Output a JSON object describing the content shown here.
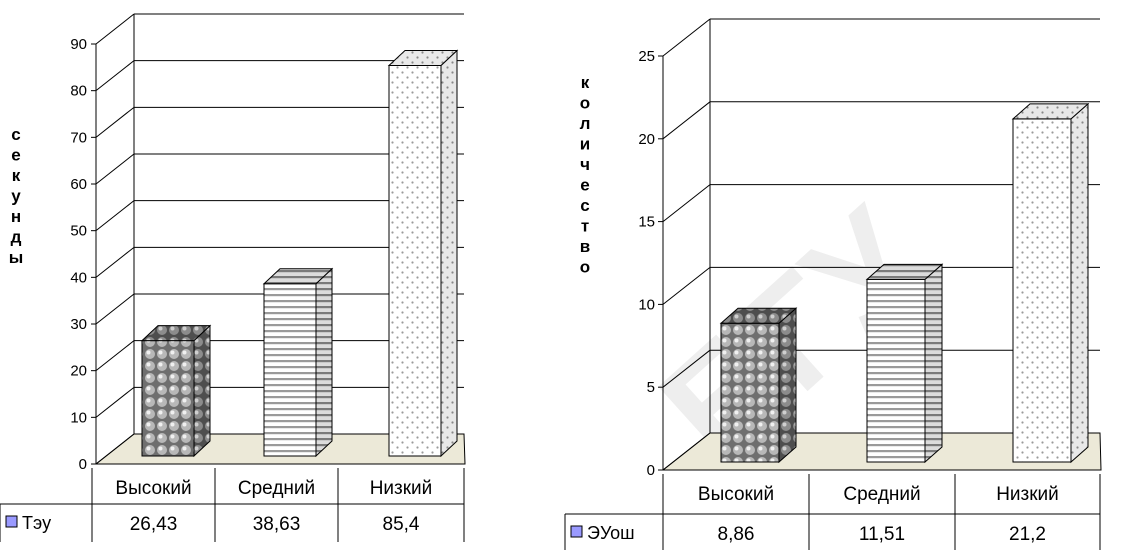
{
  "chart_data": [
    {
      "type": "bar",
      "categories": [
        "Высокий",
        "Средний",
        "Низкий"
      ],
      "series": [
        {
          "name": "Тэу",
          "values": [
            26.43,
            38.63,
            85.4
          ]
        }
      ],
      "value_labels": [
        "26,43",
        "38,63",
        "85,4"
      ],
      "ylim": [
        0,
        90
      ],
      "yticks": [
        0,
        10,
        20,
        30,
        40,
        50,
        60,
        70,
        80,
        90
      ],
      "ylabel": "секунды",
      "xlabel": "",
      "title": "",
      "grid": true,
      "legend": "data-table-bottom"
    },
    {
      "type": "bar",
      "categories": [
        "Высокий",
        "Средний",
        "Низкий"
      ],
      "series": [
        {
          "name": "ЭУош",
          "values": [
            8.86,
            11.51,
            21.2
          ]
        }
      ],
      "value_labels": [
        "8,86",
        "11,51",
        "21,2"
      ],
      "ylim": [
        0,
        25
      ],
      "yticks": [
        0,
        5,
        10,
        15,
        20,
        25
      ],
      "ylabel": "количество",
      "xlabel": "",
      "title": "",
      "grid": true,
      "legend": "data-table-bottom"
    }
  ],
  "colors": {
    "legend_swatch": "#9a9aff",
    "floor": "#ece9d8",
    "line": "#000000",
    "watermark": "#eeeeee"
  },
  "watermark": "БГУ"
}
